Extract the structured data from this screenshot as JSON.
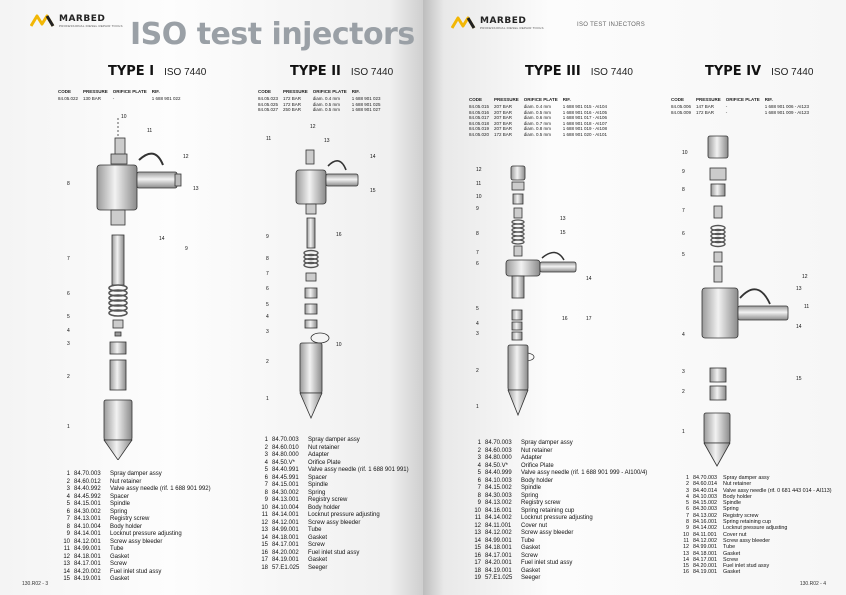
{
  "header": {
    "brand": "MARBED",
    "brand_sub": "PROFESSIONAL DIESEL REPAIR TOOLS",
    "title_left": "ISO test injectors",
    "title_right": "ISO TEST INJECTORS"
  },
  "columns": {
    "label_code": "CODE",
    "label_pressure": "PRESSURE",
    "label_orifice": "ORIFICE PLATE",
    "label_rif": "RIF."
  },
  "type1": {
    "name": "TYPE I",
    "iso": "ISO 7440",
    "spec": [
      {
        "code": "84.05.022",
        "pressure": "130 BAR",
        "orifice": "-",
        "rif": "1 688 901 022"
      }
    ],
    "parts": [
      {
        "n": "1",
        "code": "84.70.003",
        "desc": "Spray damper assy"
      },
      {
        "n": "2",
        "code": "84.60.012",
        "desc": "Nut retainer"
      },
      {
        "n": "3",
        "code": "84.40.992",
        "desc": "Valve assy needle (rif. 1 688 901 992)"
      },
      {
        "n": "4",
        "code": "84.45.992",
        "desc": "Spacer"
      },
      {
        "n": "5",
        "code": "84.15.001",
        "desc": "Spindle"
      },
      {
        "n": "6",
        "code": "84.30.002",
        "desc": "Spring"
      },
      {
        "n": "7",
        "code": "84.13.001",
        "desc": "Registry screw"
      },
      {
        "n": "8",
        "code": "84.10.004",
        "desc": "Body holder"
      },
      {
        "n": "9",
        "code": "84.14.001",
        "desc": "Locknut pressure adjusting"
      },
      {
        "n": "10",
        "code": "84.12.001",
        "desc": "Screw assy bleeder"
      },
      {
        "n": "11",
        "code": "84.99.001",
        "desc": "Tube"
      },
      {
        "n": "12",
        "code": "84.18.001",
        "desc": "Gasket"
      },
      {
        "n": "13",
        "code": "84.17.001",
        "desc": "Screw"
      },
      {
        "n": "14",
        "code": "84.20.002",
        "desc": "Fuel inlet stud assy"
      },
      {
        "n": "15",
        "code": "84.19.001",
        "desc": "Gasket"
      }
    ],
    "callouts": [
      "1",
      "2",
      "3",
      "4",
      "5",
      "6",
      "7",
      "8",
      "9",
      "10",
      "11",
      "12",
      "13",
      "14"
    ]
  },
  "type2": {
    "name": "TYPE II",
    "iso": "ISO 7440",
    "spec": [
      {
        "code": "84.05.023",
        "pressure": "172 BAR",
        "orifice": "diam. 0.4 mm",
        "rif": "1 688 901 023"
      },
      {
        "code": "84.05.025",
        "pressure": "172 BAR",
        "orifice": "diam. 0.5 mm",
        "rif": "1 688 901 025"
      },
      {
        "code": "84.05.027",
        "pressure": "250 BAR",
        "orifice": "diam. 0.5 mm",
        "rif": "1 688 901 027"
      }
    ],
    "parts": [
      {
        "n": "1",
        "code": "84.70.003",
        "desc": "Spray damper assy"
      },
      {
        "n": "2",
        "code": "84.60.010",
        "desc": "Nut retainer"
      },
      {
        "n": "3",
        "code": "84.80.000",
        "desc": "Adapter"
      },
      {
        "n": "4",
        "code": "84.50.V*",
        "desc": "Orifice Plate"
      },
      {
        "n": "5",
        "code": "84.40.991",
        "desc": "Valve assy needle (rif. 1 688 901 991)"
      },
      {
        "n": "6",
        "code": "84.45.991",
        "desc": "Spacer"
      },
      {
        "n": "7",
        "code": "84.15.001",
        "desc": "Spindle"
      },
      {
        "n": "8",
        "code": "84.30.002",
        "desc": "Spring"
      },
      {
        "n": "9",
        "code": "84.13.001",
        "desc": "Registry screw"
      },
      {
        "n": "10",
        "code": "84.10.004",
        "desc": "Body holder"
      },
      {
        "n": "11",
        "code": "84.14.001",
        "desc": "Locknut pressure adjusting"
      },
      {
        "n": "12",
        "code": "84.12.001",
        "desc": "Screw assy bleeder"
      },
      {
        "n": "13",
        "code": "84.99.001",
        "desc": "Tube"
      },
      {
        "n": "14",
        "code": "84.18.001",
        "desc": "Gasket"
      },
      {
        "n": "15",
        "code": "84.17.001",
        "desc": "Screw"
      },
      {
        "n": "16",
        "code": "84.20.002",
        "desc": "Fuel inlet stud assy"
      },
      {
        "n": "17",
        "code": "84.19.001",
        "desc": "Gasket"
      },
      {
        "n": "18",
        "code": "57.E1.025",
        "desc": "Seeger"
      }
    ],
    "callouts": [
      "1",
      "2",
      "3",
      "4",
      "5",
      "6",
      "7",
      "8",
      "9",
      "10",
      "11",
      "12",
      "13",
      "14",
      "15",
      "16"
    ]
  },
  "type3": {
    "name": "TYPE III",
    "iso": "ISO 7440",
    "spec": [
      {
        "code": "84.05.015",
        "pressure": "207 BAR",
        "orifice": "diam. 0.4 mm",
        "rif": "1 688 901 015 - AI104"
      },
      {
        "code": "84.05.016",
        "pressure": "207 BAR",
        "orifice": "diam. 0.5 mm",
        "rif": "1 688 901 016 - AI105"
      },
      {
        "code": "84.05.017",
        "pressure": "207 BAR",
        "orifice": "diam. 0.6 mm",
        "rif": "1 688 901 017 - AI106"
      },
      {
        "code": "84.05.018",
        "pressure": "207 BAR",
        "orifice": "diam. 0.7 mm",
        "rif": "1 688 901 018 - AI107"
      },
      {
        "code": "84.05.019",
        "pressure": "207 BAR",
        "orifice": "diam. 0.8 mm",
        "rif": "1 688 901 019 - AI108"
      },
      {
        "code": "84.05.020",
        "pressure": "172 BAR",
        "orifice": "diam. 0.5 mm",
        "rif": "1 688 901 020 - AI101"
      }
    ],
    "parts": [
      {
        "n": "1",
        "code": "84.70.003",
        "desc": "Spray damper assy"
      },
      {
        "n": "2",
        "code": "84.60.003",
        "desc": "Nut retainer"
      },
      {
        "n": "3",
        "code": "84.80.000",
        "desc": "Adapter"
      },
      {
        "n": "4",
        "code": "84.50.V*",
        "desc": "Orifice Plate"
      },
      {
        "n": "5",
        "code": "84.40.999",
        "desc": "Valve assy needle (rif. 1 688 901 999 - AI100/4)"
      },
      {
        "n": "6",
        "code": "84.10.003",
        "desc": "Body holder"
      },
      {
        "n": "7",
        "code": "84.15.002",
        "desc": "Spindle"
      },
      {
        "n": "8",
        "code": "84.30.003",
        "desc": "Spring"
      },
      {
        "n": "9",
        "code": "84.13.002",
        "desc": "Registry screw"
      },
      {
        "n": "10",
        "code": "84.16.001",
        "desc": "Spring retaining cup"
      },
      {
        "n": "11",
        "code": "84.14.002",
        "desc": "Locknut pressure adjusting"
      },
      {
        "n": "12",
        "code": "84.11.001",
        "desc": "Cover nut"
      },
      {
        "n": "13",
        "code": "84.12.002",
        "desc": "Screw assy bleeder"
      },
      {
        "n": "14",
        "code": "84.99.001",
        "desc": "Tube"
      },
      {
        "n": "15",
        "code": "84.18.001",
        "desc": "Gasket"
      },
      {
        "n": "16",
        "code": "84.17.001",
        "desc": "Screw"
      },
      {
        "n": "17",
        "code": "84.20.001",
        "desc": "Fuel inlet stud assy"
      },
      {
        "n": "18",
        "code": "84.19.001",
        "desc": "Gasket"
      },
      {
        "n": "19",
        "code": "57.E1.025",
        "desc": "Seeger"
      }
    ],
    "callouts": [
      "1",
      "2",
      "3",
      "4",
      "5",
      "6",
      "7",
      "8",
      "9",
      "10",
      "11",
      "12",
      "13",
      "14",
      "15",
      "16",
      "17"
    ]
  },
  "type4": {
    "name": "TYPE IV",
    "iso": "ISO 7440",
    "spec": [
      {
        "code": "84.05.006",
        "pressure": "147 BAR",
        "orifice": "-",
        "rif": "1 688 901 006 - AI123"
      },
      {
        "code": "84.05.009",
        "pressure": "172 BAR",
        "orifice": "-",
        "rif": "1 688 901 009 - AI123"
      }
    ],
    "parts": [
      {
        "n": "1",
        "code": "84.70.003",
        "desc": "Spray damper assy"
      },
      {
        "n": "2",
        "code": "84.60.014",
        "desc": "Nut retainer"
      },
      {
        "n": "3",
        "code": "84.40.014",
        "desc": "Valve assy needle (rif. 0 681 443 014 - AI113)"
      },
      {
        "n": "4",
        "code": "84.10.003",
        "desc": "Body holder"
      },
      {
        "n": "5",
        "code": "84.15.002",
        "desc": "Spindle"
      },
      {
        "n": "6",
        "code": "84.30.003",
        "desc": "Spring"
      },
      {
        "n": "7",
        "code": "84.13.002",
        "desc": "Registry screw"
      },
      {
        "n": "8",
        "code": "84.16.001",
        "desc": "Spring retaining cup"
      },
      {
        "n": "9",
        "code": "84.14.002",
        "desc": "Locknut pressure adjusting"
      },
      {
        "n": "10",
        "code": "84.11.001",
        "desc": "Cover nut"
      },
      {
        "n": "11",
        "code": "84.12.002",
        "desc": "Screw assy bleeder"
      },
      {
        "n": "12",
        "code": "84.99.001",
        "desc": "Tube"
      },
      {
        "n": "13",
        "code": "84.18.001",
        "desc": "Gasket"
      },
      {
        "n": "14",
        "code": "84.17.001",
        "desc": "Screw"
      },
      {
        "n": "15",
        "code": "84.20.001",
        "desc": "Fuel inlet stud assy"
      },
      {
        "n": "16",
        "code": "84.19.001",
        "desc": "Gasket"
      }
    ],
    "callouts": [
      "1",
      "2",
      "3",
      "4",
      "5",
      "6",
      "7",
      "8",
      "9",
      "10",
      "11",
      "12",
      "13",
      "14",
      "15"
    ]
  },
  "footer": {
    "page_left": "130.R02 - 3",
    "page_right": "130.R02 - 4"
  }
}
